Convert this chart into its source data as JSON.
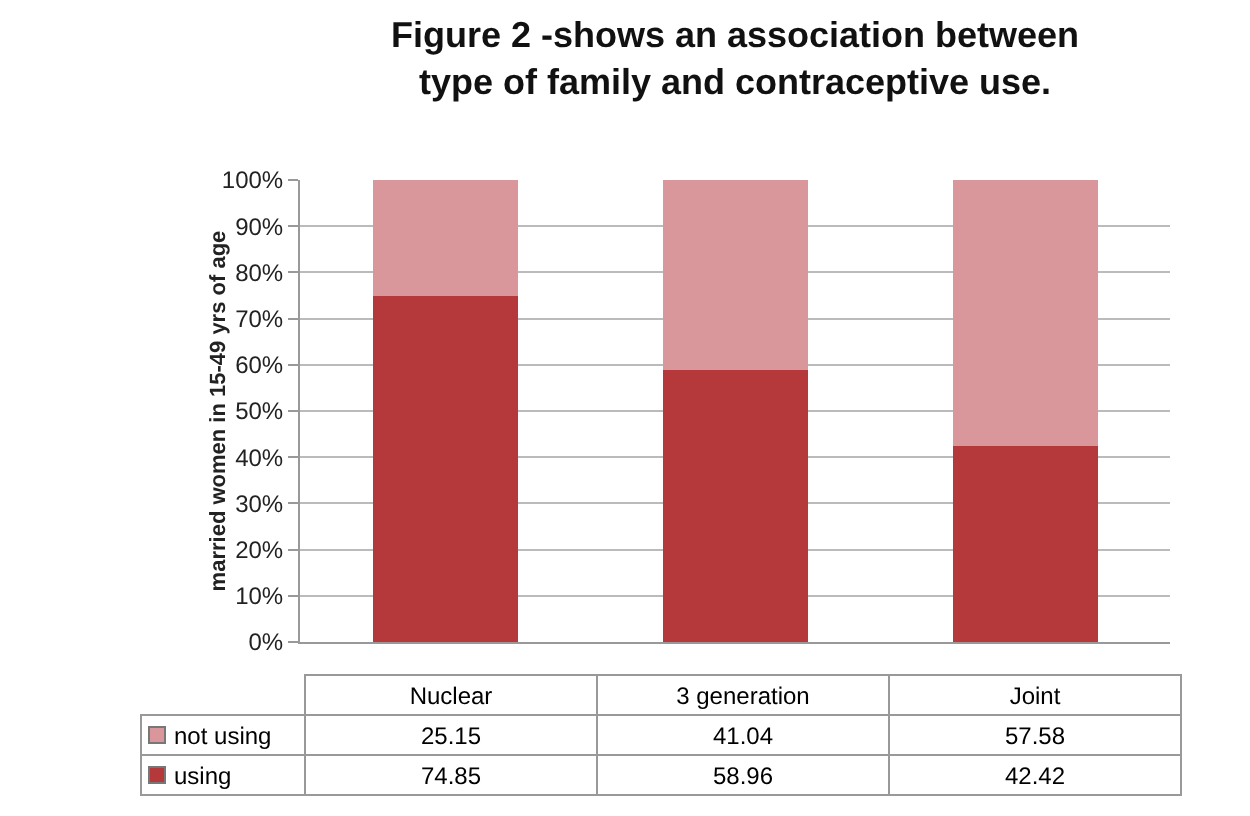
{
  "chart_data": {
    "type": "bar",
    "title": "Figure 2 -shows an association between type of family and contraceptive use.",
    "ylabel": "married women in 15-49 yrs of age",
    "categories": [
      "Nuclear",
      "3 generation",
      "Joint"
    ],
    "series": [
      {
        "name": "using",
        "color": "#b5393b",
        "values": [
          74.85,
          58.96,
          42.42
        ]
      },
      {
        "name": "not using",
        "color": "#d9969b",
        "values": [
          25.15,
          41.04,
          57.58
        ]
      }
    ],
    "stacked": true,
    "ylim": [
      0,
      100
    ],
    "yticks": [
      {
        "value": 0,
        "label": "0%"
      },
      {
        "value": 10,
        "label": "10%"
      },
      {
        "value": 20,
        "label": "20%"
      },
      {
        "value": 30,
        "label": "30%"
      },
      {
        "value": 40,
        "label": "40%"
      },
      {
        "value": 50,
        "label": "50%"
      },
      {
        "value": 60,
        "label": "60%"
      },
      {
        "value": 70,
        "label": "70%"
      },
      {
        "value": 80,
        "label": "80%"
      },
      {
        "value": 90,
        "label": "90%"
      },
      {
        "value": 100,
        "label": "100%"
      }
    ],
    "grid": true,
    "legend": "bottom",
    "data_labels": true
  }
}
